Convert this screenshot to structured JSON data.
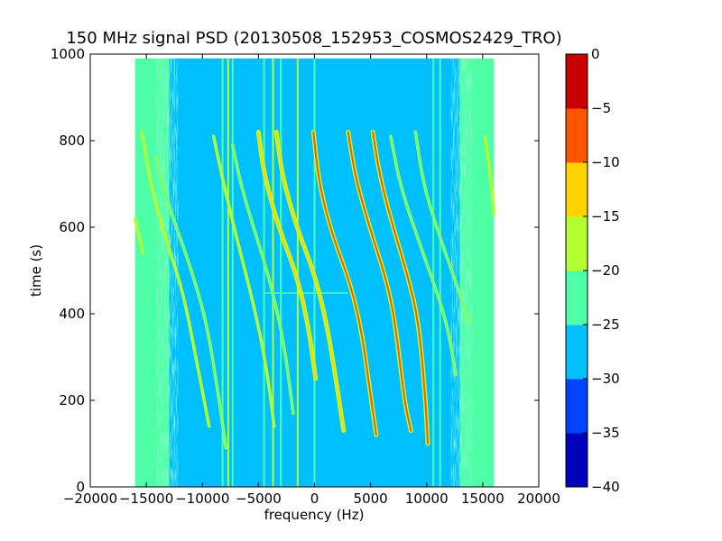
{
  "chart_data": {
    "type": "heatmap",
    "title": "150 MHz signal PSD (20130508_152953_COSMOS2429_TRO)",
    "xlabel": "frequency (Hz)",
    "ylabel": "time (s)",
    "xlim": [
      -20000,
      20000
    ],
    "ylim": [
      0,
      1000
    ],
    "x_ticks": [
      -20000,
      -15000,
      -10000,
      -5000,
      0,
      5000,
      10000,
      15000,
      20000
    ],
    "x_tick_labels": [
      "−20000",
      "−15000",
      "−10000",
      "−5000",
      "0",
      "5000",
      "10000",
      "15000",
      "20000"
    ],
    "y_ticks": [
      0,
      200,
      400,
      600,
      800,
      1000
    ],
    "y_tick_labels": [
      "0",
      "200",
      "400",
      "600",
      "800",
      "1000"
    ],
    "data_extent": {
      "x": [
        -16000,
        16000
      ],
      "y": [
        0,
        990
      ]
    },
    "colorbar": {
      "min": -40,
      "max": 0,
      "levels": [
        -40,
        -35,
        -30,
        -25,
        -20,
        -15,
        -10,
        -5,
        0
      ],
      "tick_labels": [
        "−40",
        "−35",
        "−30",
        "−25",
        "−20",
        "−15",
        "−10",
        "−5",
        "0"
      ],
      "colors": [
        "#0000bb",
        "#0044ff",
        "#00bfff",
        "#4dffa6",
        "#b3ff33",
        "#ffd400",
        "#ff5500",
        "#c80000"
      ]
    },
    "background_level": -27,
    "edge_level": -22,
    "streaks": [
      {
        "points": [
          [
            -15400,
            820
          ],
          [
            -14600,
            700
          ],
          [
            -13400,
            580
          ],
          [
            -11800,
            460
          ],
          [
            -10500,
            290
          ],
          [
            -9400,
            140
          ]
        ],
        "level": -20
      },
      {
        "points": [
          [
            -16000,
            620
          ],
          [
            -15300,
            540
          ]
        ],
        "level": -18
      },
      {
        "points": [
          [
            -14200,
            760
          ],
          [
            -12900,
            640
          ],
          [
            -11200,
            520
          ],
          [
            -9600,
            380
          ],
          [
            -8500,
            200
          ],
          [
            -7900,
            90
          ]
        ],
        "level": -22
      },
      {
        "points": [
          [
            -9000,
            810
          ],
          [
            -8100,
            700
          ],
          [
            -6800,
            560
          ],
          [
            -5400,
            420
          ],
          [
            -4300,
            280
          ],
          [
            -3600,
            140
          ]
        ],
        "level": -20
      },
      {
        "points": [
          [
            -7300,
            790
          ],
          [
            -6500,
            690
          ],
          [
            -5200,
            580
          ],
          [
            -3900,
            470
          ],
          [
            -2700,
            330
          ],
          [
            -1900,
            170
          ]
        ],
        "level": -21
      },
      {
        "points": [
          [
            -5000,
            820
          ],
          [
            -4500,
            720
          ],
          [
            -3200,
            600
          ],
          [
            -1600,
            490
          ],
          [
            -600,
            380
          ],
          [
            100,
            250
          ]
        ],
        "level": -12
      },
      {
        "points": [
          [
            -3400,
            820
          ],
          [
            -2900,
            720
          ],
          [
            -1600,
            600
          ],
          [
            -100,
            500
          ],
          [
            900,
            400
          ],
          [
            1600,
            300
          ],
          [
            2600,
            130
          ]
        ],
        "level": -12
      },
      {
        "points": [
          [
            -100,
            820
          ],
          [
            400,
            700
          ],
          [
            1600,
            580
          ],
          [
            3200,
            470
          ],
          [
            4200,
            360
          ],
          [
            4900,
            230
          ],
          [
            5500,
            120
          ]
        ],
        "level": -6
      },
      {
        "points": [
          [
            3000,
            820
          ],
          [
            3600,
            720
          ],
          [
            4900,
            600
          ],
          [
            6400,
            480
          ],
          [
            7200,
            380
          ],
          [
            8000,
            200
          ],
          [
            8600,
            130
          ]
        ],
        "level": -10
      },
      {
        "points": [
          [
            5200,
            820
          ],
          [
            5800,
            720
          ],
          [
            7000,
            600
          ],
          [
            8300,
            490
          ],
          [
            9300,
            380
          ],
          [
            9900,
            200
          ],
          [
            10100,
            100
          ]
        ],
        "level": -10
      },
      {
        "points": [
          [
            6800,
            810
          ],
          [
            7600,
            700
          ],
          [
            9000,
            590
          ],
          [
            10500,
            480
          ],
          [
            11800,
            380
          ],
          [
            12600,
            260
          ]
        ],
        "level": -21
      },
      {
        "points": [
          [
            9000,
            820
          ],
          [
            9700,
            700
          ],
          [
            11000,
            590
          ],
          [
            12500,
            480
          ],
          [
            13800,
            380
          ]
        ],
        "level": -22
      },
      {
        "points": [
          [
            15200,
            810
          ],
          [
            15700,
            720
          ],
          [
            16000,
            630
          ]
        ],
        "level": -17
      }
    ],
    "vertical_lines": [
      {
        "x": -8200,
        "level": -21
      },
      {
        "x": -7700,
        "level": -20
      },
      {
        "x": -7300,
        "level": -21
      },
      {
        "x": -4500,
        "level": -21
      },
      {
        "x": -3700,
        "level": -20
      },
      {
        "x": -3000,
        "level": -21
      },
      {
        "x": -1500,
        "level": -20
      },
      {
        "x": 0,
        "level": -22
      },
      {
        "x": 10600,
        "level": -21
      },
      {
        "x": 11200,
        "level": -21
      }
    ],
    "horizontal_features": [
      {
        "y": 448,
        "x_range": [
          -4500,
          3000
        ],
        "level": -21
      }
    ]
  }
}
